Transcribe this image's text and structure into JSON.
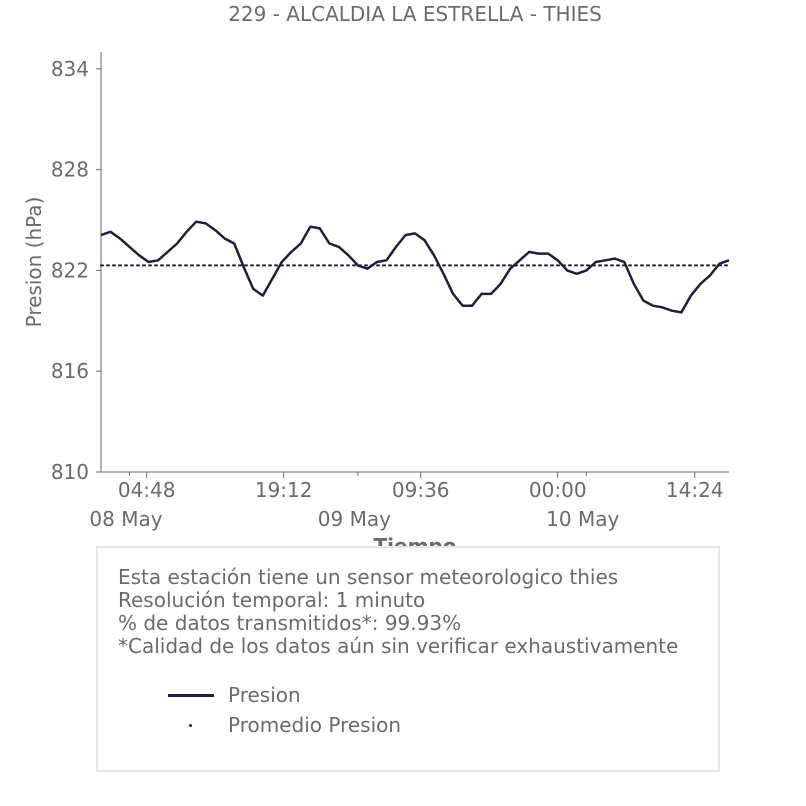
{
  "chart_data": {
    "type": "line",
    "title": "229 - ALCALDIA LA ESTRELLA - THIES",
    "xlabel": "Tiempo",
    "ylabel": "Presion (hPa)",
    "ylim": [
      810,
      835
    ],
    "y_ticks": [
      810,
      816,
      822,
      828,
      834
    ],
    "y_tick_labels": [
      "810",
      "816",
      "822",
      "828",
      "834"
    ],
    "xlim": [
      "2024-05-08T00:00",
      "2024-05-10T18:00"
    ],
    "x_ticks": [
      "2024-05-08T04:48",
      "2024-05-08T19:12",
      "2024-05-09T09:36",
      "2024-05-10T00:00",
      "2024-05-10T14:24"
    ],
    "x_tick_labels": [
      "04:48",
      "19:12",
      "09:36",
      "00:00",
      "14:24"
    ],
    "x_minor_ticks": [
      "2024-05-08T03:00",
      "2024-05-09T03:00",
      "2024-05-10T03:00"
    ],
    "date_labels": [
      {
        "x": "2024-05-08T00:00",
        "label": "08 May"
      },
      {
        "x": "2024-05-09T00:00",
        "label": "09 May"
      },
      {
        "x": "2024-05-10T00:00",
        "label": "10 May"
      }
    ],
    "grid": false,
    "legend_position": "below",
    "series": [
      {
        "name": "Presion",
        "color": "#1f1f3f",
        "style": "solid",
        "x": [
          "2024-05-08T00:00",
          "2024-05-08T01:00",
          "2024-05-08T02:00",
          "2024-05-08T03:00",
          "2024-05-08T04:00",
          "2024-05-08T05:00",
          "2024-05-08T06:00",
          "2024-05-08T07:00",
          "2024-05-08T08:00",
          "2024-05-08T09:00",
          "2024-05-08T10:00",
          "2024-05-08T11:00",
          "2024-05-08T12:00",
          "2024-05-08T13:00",
          "2024-05-08T14:00",
          "2024-05-08T15:00",
          "2024-05-08T16:00",
          "2024-05-08T17:00",
          "2024-05-08T18:00",
          "2024-05-08T19:00",
          "2024-05-08T20:00",
          "2024-05-08T21:00",
          "2024-05-08T22:00",
          "2024-05-08T23:00",
          "2024-05-09T00:00",
          "2024-05-09T01:00",
          "2024-05-09T02:00",
          "2024-05-09T03:00",
          "2024-05-09T04:00",
          "2024-05-09T05:00",
          "2024-05-09T06:00",
          "2024-05-09T07:00",
          "2024-05-09T08:00",
          "2024-05-09T09:00",
          "2024-05-09T10:00",
          "2024-05-09T11:00",
          "2024-05-09T12:00",
          "2024-05-09T13:00",
          "2024-05-09T14:00",
          "2024-05-09T15:00",
          "2024-05-09T16:00",
          "2024-05-09T17:00",
          "2024-05-09T18:00",
          "2024-05-09T19:00",
          "2024-05-09T20:00",
          "2024-05-09T21:00",
          "2024-05-09T22:00",
          "2024-05-09T23:00",
          "2024-05-10T00:00",
          "2024-05-10T01:00",
          "2024-05-10T02:00",
          "2024-05-10T03:00",
          "2024-05-10T04:00",
          "2024-05-10T05:00",
          "2024-05-10T06:00",
          "2024-05-10T07:00",
          "2024-05-10T08:00",
          "2024-05-10T09:00",
          "2024-05-10T10:00",
          "2024-05-10T11:00",
          "2024-05-10T12:00",
          "2024-05-10T13:00",
          "2024-05-10T14:00",
          "2024-05-10T15:00",
          "2024-05-10T16:00",
          "2024-05-10T17:00",
          "2024-05-10T18:00"
        ],
        "values": [
          824.1,
          824.3,
          823.9,
          823.4,
          822.9,
          822.5,
          822.6,
          823.1,
          823.6,
          824.3,
          824.9,
          824.8,
          824.4,
          823.9,
          823.6,
          822.2,
          820.9,
          820.5,
          821.5,
          822.5,
          823.1,
          823.6,
          824.6,
          824.5,
          823.6,
          823.4,
          822.9,
          822.3,
          822.1,
          822.5,
          822.6,
          823.4,
          824.1,
          824.2,
          823.8,
          822.9,
          821.8,
          820.6,
          819.9,
          819.9,
          820.6,
          820.6,
          821.2,
          822.1,
          822.6,
          823.1,
          823.0,
          823.0,
          822.6,
          822.0,
          821.8,
          822.0,
          822.5,
          822.6,
          822.7,
          822.5,
          821.2,
          820.2,
          819.9,
          819.8,
          819.6,
          819.5,
          820.5,
          821.2,
          821.7,
          822.4,
          822.6
        ]
      },
      {
        "name": "Promedio Presion",
        "color": "#1f1f3f",
        "style": "dotted",
        "x": [
          "2024-05-08T00:00",
          "2024-05-10T18:00"
        ],
        "values": [
          822.3,
          822.3
        ]
      }
    ]
  },
  "info": {
    "lines": [
      "Esta estación tiene un sensor meteorologico thies",
      "Resolución temporal: 1 minuto",
      "% de datos transmitidos*: 99.93%",
      "*Calidad de los datos aún sin verificar exhaustivamente"
    ]
  },
  "legend": {
    "items": [
      {
        "label": "Presion",
        "icon": "solid-line",
        "color": "#1f1f3f"
      },
      {
        "label": "Promedio Presion",
        "icon": "dot",
        "color": "#1f1f3f"
      }
    ]
  }
}
